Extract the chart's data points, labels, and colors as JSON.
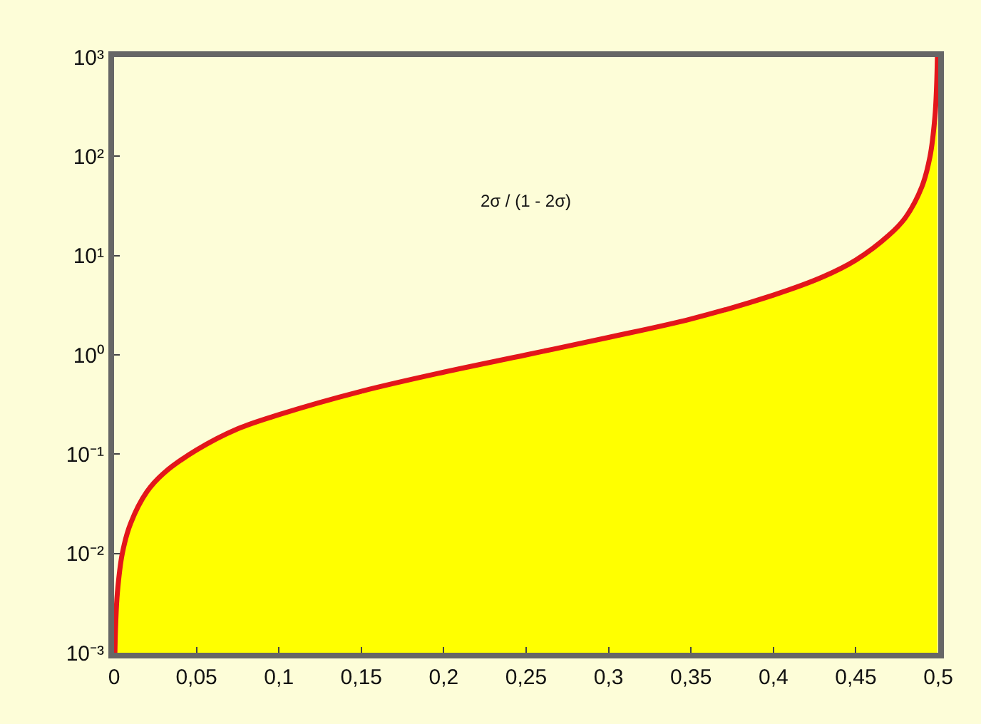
{
  "chart_data": {
    "type": "area",
    "x": [
      0.0005,
      0.001,
      0.002,
      0.005,
      0.01,
      0.02,
      0.03,
      0.05,
      0.075,
      0.1,
      0.15,
      0.2,
      0.25,
      0.3,
      0.35,
      0.4,
      0.43,
      0.45,
      0.47,
      0.48,
      0.49,
      0.495,
      0.498,
      0.499,
      0.4995
    ],
    "series": [
      {
        "color": "#e3161b",
        "values": [
          0.001,
          0.002,
          0.004,
          0.01,
          0.02,
          0.042,
          0.064,
          0.11,
          0.18,
          0.25,
          0.43,
          0.67,
          1,
          1.5,
          2.3,
          4,
          6.1,
          9,
          16,
          24,
          49,
          99,
          250,
          500,
          1000
        ]
      }
    ],
    "annotations": [
      "2σ / (1 - 2σ)"
    ],
    "xlim": [
      0,
      0.5
    ],
    "xticks": [
      0,
      {
        "value": 0.05,
        "label": "0,05"
      },
      {
        "value": 0.1,
        "label": "0,1"
      },
      {
        "value": 0.15,
        "label": "0,15"
      },
      {
        "value": 0.2,
        "label": "0,2"
      },
      {
        "value": 0.25,
        "label": "0,25"
      },
      {
        "value": 0.3,
        "label": "0,3"
      },
      {
        "value": 0.35,
        "label": "0,35"
      },
      {
        "value": 0.4,
        "label": "0,4"
      },
      {
        "value": 0.45,
        "label": "0,45"
      },
      {
        "value": 0.5,
        "label": "0,5"
      }
    ],
    "log": "y",
    "ylim": [
      0.001,
      1000
    ],
    "yticks": [
      {
        "value": 0.001,
        "label": "10⁻³"
      },
      {
        "value": 0.01,
        "label": "10⁻²"
      },
      {
        "value": 0.1,
        "label": "10⁻¹"
      },
      {
        "value": 1,
        "label": "10⁰"
      },
      {
        "value": 10,
        "label": "10¹"
      },
      {
        "value": 100,
        "label": "10²"
      },
      {
        "value": 1000,
        "label": "10³"
      }
    ],
    "grid": false
  }
}
